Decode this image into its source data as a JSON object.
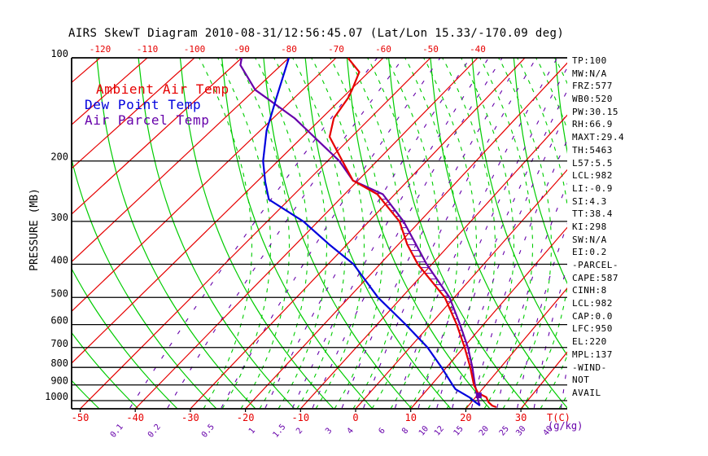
{
  "title": "AIRS SkewT Diagram 2010-08-31/12:56:45.07 (Lat/Lon 15.33/-170.09 deg)",
  "colors": {
    "isotherm": "#e60000",
    "adiabat": "#00cc00",
    "mixing": "#6600aa",
    "ambient": "#e60000",
    "dewpoint": "#0000dd",
    "parcel": "#6600aa",
    "axis": "#000000"
  },
  "legend": [
    {
      "label": "Ambient Air Temp",
      "color": "#e60000"
    },
    {
      "label": "Dew Point Temp",
      "color": "#0000dd"
    },
    {
      "label": "Air Parcel Temp",
      "color": "#6600aa"
    }
  ],
  "stats": [
    "TP:100",
    "MW:N/A",
    "FRZ:577",
    "WB0:520",
    "PW:30.15",
    "RH:66.9",
    "MAXT:29.4",
    "TH:5463",
    "L57:5.5",
    "LCL:982",
    "LI:-0.9",
    "SI:4.3",
    "TT:38.4",
    "KI:298",
    "SW:N/A",
    "EI:0.2",
    "-PARCEL-",
    "CAPE:587",
    "CINH:8",
    "LCL:982",
    "CAP:0.0",
    "LFC:950",
    "EL:220",
    "MPL:137",
    "-WIND-",
    "NOT",
    "AVAIL"
  ],
  "chart_data": {
    "type": "line",
    "title": "AIRS SkewT Diagram 2010-08-31/12:56:45.07 (Lat/Lon 15.33/-170.09 deg)",
    "y_axis": {
      "label": "PRESSURE (MB)",
      "scale": "log",
      "range": [
        100,
        1056
      ],
      "ticks": [
        100,
        200,
        300,
        400,
        500,
        600,
        700,
        800,
        900,
        1000
      ]
    },
    "x_axis": {
      "label": "T(C)",
      "bottom_ticks": [
        -50,
        -40,
        -30,
        -20,
        -10,
        0,
        10,
        20,
        30
      ],
      "top_ticks": [
        -120,
        -110,
        -100,
        -90,
        -80,
        -70,
        -60,
        -50,
        -40
      ]
    },
    "mixing_ratio_label": "(g/kg)",
    "mixing_ratio_ticks": [
      0.1,
      0.2,
      0.5,
      1,
      1.5,
      2,
      3,
      4,
      6,
      8,
      10,
      12,
      15,
      20,
      25,
      30,
      40
    ],
    "grid": {
      "isobars_mb": [
        100,
        200,
        300,
        400,
        500,
        600,
        700,
        800,
        900,
        1000
      ],
      "isotherm_step_c": 10,
      "isotherm_range_c": [
        -170,
        40
      ]
    },
    "series": [
      {
        "name": "Ambient Air Temp",
        "color": "#e60000",
        "points_p_t": [
          [
            100,
            -67.5
          ],
          [
            110,
            -62
          ],
          [
            124,
            -59.7
          ],
          [
            131,
            -58.8
          ],
          [
            150,
            -57.5
          ],
          [
            170,
            -54.5
          ],
          [
            200,
            -47
          ],
          [
            228,
            -41
          ],
          [
            250,
            -33.5
          ],
          [
            300,
            -24
          ],
          [
            350,
            -18.3
          ],
          [
            400,
            -12.7
          ],
          [
            500,
            -1.8
          ],
          [
            600,
            5.0
          ],
          [
            700,
            10.2
          ],
          [
            800,
            14.4
          ],
          [
            900,
            17.8
          ],
          [
            950,
            19.8
          ],
          [
            978,
            22.0
          ],
          [
            1010,
            23.1
          ],
          [
            1034,
            24.3
          ],
          [
            1045,
            25.3
          ]
        ]
      },
      {
        "name": "Dew Point Temp",
        "color": "#0000dd",
        "points_p_t": [
          [
            100,
            -80
          ],
          [
            131,
            -73.7
          ],
          [
            163,
            -68.7
          ],
          [
            200,
            -63
          ],
          [
            230,
            -58.3
          ],
          [
            259,
            -54
          ],
          [
            300,
            -42.9
          ],
          [
            350,
            -33.5
          ],
          [
            400,
            -25.1
          ],
          [
            500,
            -14.5
          ],
          [
            600,
            -4.6
          ],
          [
            700,
            3.3
          ],
          [
            800,
            9.1
          ],
          [
            900,
            13.9
          ],
          [
            926,
            15.1
          ],
          [
            978,
            18.9
          ],
          [
            1005,
            20.4
          ],
          [
            1034,
            22.1
          ]
        ]
      },
      {
        "name": "Air Parcel Temp",
        "color": "#6600aa",
        "points_p_t": [
          [
            100,
            -90
          ],
          [
            105,
            -88.6
          ],
          [
            124,
            -79.9
          ],
          [
            150,
            -65.6
          ],
          [
            200,
            -47.6
          ],
          [
            228,
            -41
          ],
          [
            250,
            -32.4
          ],
          [
            300,
            -23.2
          ],
          [
            400,
            -11.0
          ],
          [
            500,
            -0.9
          ],
          [
            600,
            5.6
          ],
          [
            700,
            10.8
          ],
          [
            800,
            14.8
          ],
          [
            900,
            18.0
          ],
          [
            950,
            19.6
          ],
          [
            982,
            20.5
          ],
          [
            1010,
            21.3
          ],
          [
            1028,
            21.9
          ]
        ]
      }
    ],
    "cape_hatch": {
      "between": [
        "Air Parcel Temp",
        "Ambient Air Temp"
      ],
      "from_mb": 950,
      "to_mb": 228
    },
    "parcel_marker": {
      "p": 965,
      "t": 20.3
    },
    "annotations": {
      "EL_mb": 220,
      "LFC_mb": 950,
      "LCL_mb": 982
    }
  }
}
